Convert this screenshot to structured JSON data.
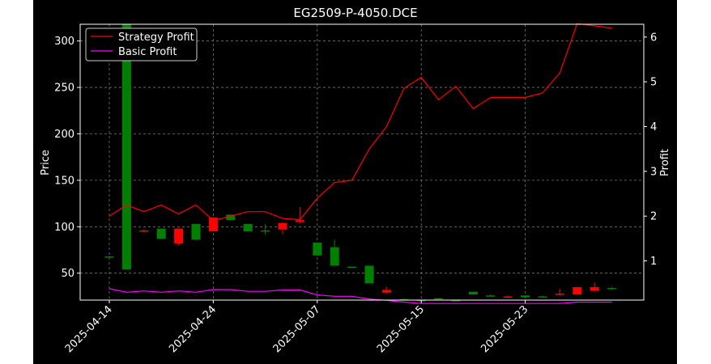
{
  "chart_data": {
    "type": "candlestick+line",
    "title": "EG2509-P-4050.DCE",
    "ylabel_left": "Price",
    "ylabel_right": "Profit",
    "ylim_left": [
      21,
      318
    ],
    "ylim_right": [
      0.125,
      6.285
    ],
    "yticks_left": [
      50,
      100,
      150,
      200,
      250,
      300
    ],
    "yticks_right": [
      1,
      2,
      3,
      4,
      5,
      6
    ],
    "yticks_left_labels": [
      "50",
      "100",
      "150",
      "200",
      "250",
      "300"
    ],
    "yticks_right_labels": [
      "1",
      "2",
      "3",
      "4",
      "5",
      "6"
    ],
    "xticks": [
      {
        "index": 0,
        "label": "2025-04-14"
      },
      {
        "index": 6,
        "label": "2025-04-24"
      },
      {
        "index": 12,
        "label": "2025-05-07"
      },
      {
        "index": 18,
        "label": "2025-05-15"
      },
      {
        "index": 24,
        "label": "2025-05-23"
      }
    ],
    "grid": true,
    "legend_position": "top-left",
    "colors": {
      "up": "#008000",
      "down": "#ff0000",
      "strategy": "#ff0000",
      "basic": "#ff00ff",
      "background": "#000000",
      "foreground": "#ffffff",
      "grid": "#777777"
    },
    "candles": [
      {
        "open": 68,
        "high": 68,
        "low": 68,
        "close": 68
      },
      {
        "open": 54,
        "high": 318,
        "low": 54,
        "close": 318
      },
      {
        "open": 96,
        "high": 97,
        "low": 94,
        "close": 95
      },
      {
        "open": 87,
        "high": 98,
        "low": 87,
        "close": 98
      },
      {
        "open": 98,
        "high": 98,
        "low": 80,
        "close": 82
      },
      {
        "open": 86,
        "high": 103,
        "low": 85,
        "close": 103
      },
      {
        "open": 110,
        "high": 110,
        "low": 95,
        "close": 95
      },
      {
        "open": 107,
        "high": 113,
        "low": 107,
        "close": 113
      },
      {
        "open": 95,
        "high": 103,
        "low": 95,
        "close": 103
      },
      {
        "open": 95,
        "high": 103,
        "low": 91,
        "close": 96
      },
      {
        "open": 104,
        "high": 105,
        "low": 92,
        "close": 97
      },
      {
        "open": 107,
        "high": 121,
        "low": 104,
        "close": 105
      },
      {
        "open": 69,
        "high": 83,
        "low": 69,
        "close": 83
      },
      {
        "open": 58,
        "high": 86,
        "low": 58,
        "close": 78
      },
      {
        "open": 57,
        "high": 57,
        "low": 57,
        "close": 57
      },
      {
        "open": 39,
        "high": 58,
        "low": 39,
        "close": 58
      },
      {
        "open": 32,
        "high": 35,
        "low": 28,
        "close": 29
      },
      {
        "open": 22,
        "high": 23,
        "low": 21,
        "close": 22
      },
      {
        "open": 21,
        "high": 21,
        "low": 21,
        "close": 21
      },
      {
        "open": 22,
        "high": 23,
        "low": 22,
        "close": 23
      },
      {
        "open": 21,
        "high": 21,
        "low": 21,
        "close": 21
      },
      {
        "open": 27,
        "high": 30,
        "low": 27,
        "close": 30
      },
      {
        "open": 25,
        "high": 27,
        "low": 25,
        "close": 26
      },
      {
        "open": 25,
        "high": 26,
        "low": 23,
        "close": 24
      },
      {
        "open": 24,
        "high": 26,
        "low": 24,
        "close": 26
      },
      {
        "open": 25,
        "high": 26,
        "low": 24,
        "close": 25
      },
      {
        "open": 28,
        "high": 33,
        "low": 26,
        "close": 27
      },
      {
        "open": 35,
        "high": 35,
        "low": 27,
        "close": 27
      },
      {
        "open": 35,
        "high": 40,
        "low": 30,
        "close": 31
      },
      {
        "open": 33,
        "high": 35,
        "low": 32,
        "close": 34
      }
    ],
    "series": [
      {
        "name": "Strategy Profit",
        "values": [
          2.0,
          2.25,
          2.1,
          2.25,
          2.05,
          2.25,
          1.9,
          2.0,
          2.1,
          2.1,
          1.95,
          1.92,
          2.4,
          2.75,
          2.8,
          3.5,
          4.0,
          4.85,
          5.1,
          4.6,
          4.9,
          4.4,
          4.65,
          4.65,
          4.65,
          4.75,
          5.2,
          6.3,
          6.25,
          6.2
        ]
      },
      {
        "name": "Basic Profit",
        "values": [
          0.38,
          0.3,
          0.33,
          0.3,
          0.33,
          0.3,
          0.36,
          0.36,
          0.32,
          0.32,
          0.35,
          0.35,
          0.24,
          0.21,
          0.21,
          0.15,
          0.12,
          0.08,
          0.05,
          0.05,
          0.05,
          0.05,
          0.05,
          0.05,
          0.05,
          0.05,
          0.05,
          0.08,
          0.08,
          0.08
        ]
      }
    ]
  }
}
